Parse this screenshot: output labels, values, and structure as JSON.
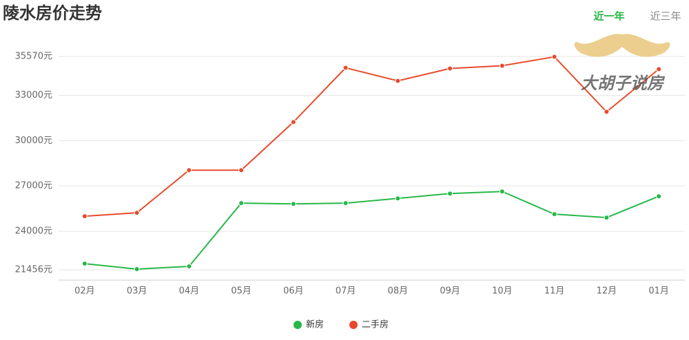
{
  "chart_data": {
    "type": "line",
    "title": "陵水房价走势",
    "tabs": [
      "近一年",
      "近三年"
    ],
    "watermark": "大胡子说房",
    "categories": [
      "02月",
      "03月",
      "04月",
      "05月",
      "06月",
      "07月",
      "08月",
      "09月",
      "10月",
      "11月",
      "12月",
      "01月"
    ],
    "series": [
      {
        "name": "新房",
        "color": "#27b847",
        "values": [
          21864,
          21500,
          21682,
          25864,
          25818,
          25864,
          26182,
          26500,
          26636,
          25136,
          24909,
          26318
        ]
      },
      {
        "name": "二手房",
        "color": "#e84a2c",
        "values": [
          25000,
          25227,
          28045,
          28045,
          31227,
          34818,
          33955,
          34773,
          34955,
          35545,
          31909,
          34727
        ]
      }
    ],
    "ylim": [
      21456,
      35570
    ],
    "yticks": [
      {
        "value": 21456,
        "label": "21456元"
      },
      {
        "value": 24000,
        "label": "24000元"
      },
      {
        "value": 27000,
        "label": "27000元"
      },
      {
        "value": 30000,
        "label": "30000元"
      },
      {
        "value": 33000,
        "label": "33000元"
      },
      {
        "value": 35570,
        "label": "35570元"
      }
    ],
    "grid": true
  }
}
